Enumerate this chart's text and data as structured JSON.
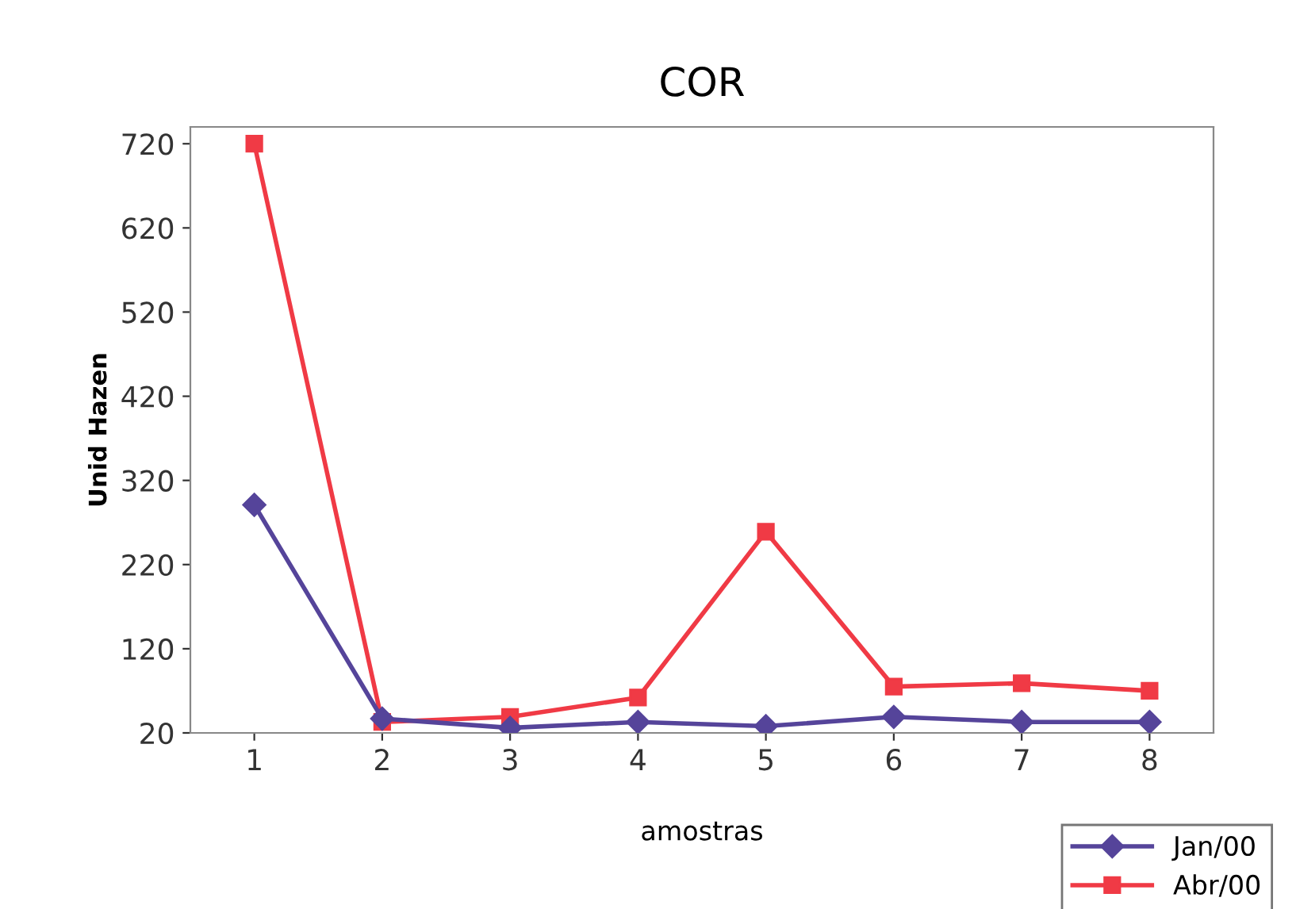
{
  "chart_data": {
    "type": "line",
    "title": "COR",
    "xlabel": "amostras",
    "ylabel": "Unid Hazen",
    "categories": [
      "1",
      "2",
      "3",
      "4",
      "5",
      "6",
      "7",
      "8"
    ],
    "series": [
      {
        "name": "Jan/00",
        "color": "#55449a",
        "marker": "diamond",
        "values": [
          291,
          37,
          26,
          33,
          28,
          39,
          33,
          33
        ]
      },
      {
        "name": "Abr/00",
        "color": "#f03a45",
        "marker": "square",
        "values": [
          720,
          33,
          39,
          62,
          259,
          75,
          79,
          70
        ]
      }
    ],
    "ylim": [
      20,
      740
    ],
    "yticks": [
      20,
      120,
      220,
      320,
      420,
      520,
      620,
      720
    ],
    "grid": false,
    "legend": "bottom right"
  }
}
